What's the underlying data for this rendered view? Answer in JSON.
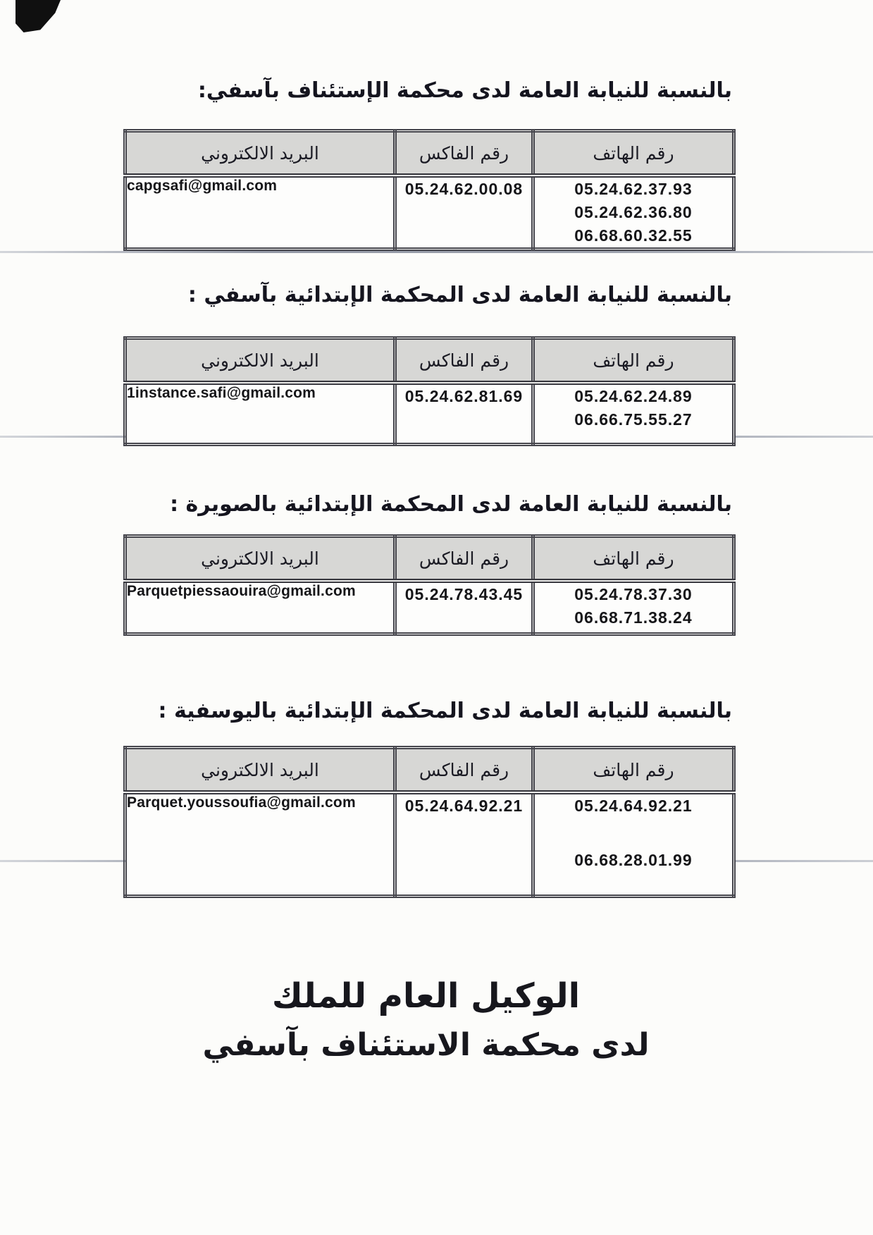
{
  "document": {
    "language": "ar",
    "colors": {
      "paper": "#fcfcfa",
      "table_header_bg": "#d7d7d5",
      "ink": "#1c1c22",
      "border": "#45454c"
    },
    "sections": [
      {
        "heading": "بالنسبة للنيابة العامة لدى محكمة الإستئناف بآسفي:",
        "table": {
          "headers": {
            "phone": "رقم الهاتف",
            "fax": "رقم الفاكس",
            "email": "البريد الالكتروني"
          },
          "row": {
            "email": "capgsafi@gmail.com",
            "fax": "05.24.62.00.08",
            "phones": [
              "05.24.62.37.93",
              "05.24.62.36.80",
              "06.68.60.32.55"
            ]
          }
        }
      },
      {
        "heading": "بالنسبة للنيابة العامة لدى المحكمة الإبتدائية بآسفي :",
        "table": {
          "headers": {
            "phone": "رقم الهاتف",
            "fax": "رقم الفاكس",
            "email": "البريد الالكتروني"
          },
          "row": {
            "email": "1instance.safi@gmail.com",
            "fax": "05.24.62.81.69",
            "phones": [
              "05.24.62.24.89",
              "06.66.75.55.27"
            ]
          }
        }
      },
      {
        "heading": "بالنسبة للنيابة العامة لدى المحكمة الإبتدائية بالصويرة :",
        "table": {
          "headers": {
            "phone": "رقم الهاتف",
            "fax": "رقم الفاكس",
            "email": "البريد الالكتروني"
          },
          "row": {
            "email": "Parquetpiessaouira@gmail.com",
            "fax": "05.24.78.43.45",
            "phones": [
              "05.24.78.37.30",
              "06.68.71.38.24"
            ]
          }
        }
      },
      {
        "heading": "بالنسبة للنيابة العامة لدى المحكمة الإبتدائية باليوسفية :",
        "table": {
          "headers": {
            "phone": "رقم الهاتف",
            "fax": "رقم الفاكس",
            "email": "البريد الالكتروني"
          },
          "row": {
            "email": "Parquet.youssoufia@gmail.com",
            "fax": "05.24.64.92.21",
            "phones": [
              "05.24.64.92.21",
              "06.68.28.01.99"
            ]
          }
        }
      }
    ],
    "signature": {
      "line1": "الوكيل العام للملك",
      "line2": "لدى محكمة الاستئناف بآسفي"
    }
  }
}
